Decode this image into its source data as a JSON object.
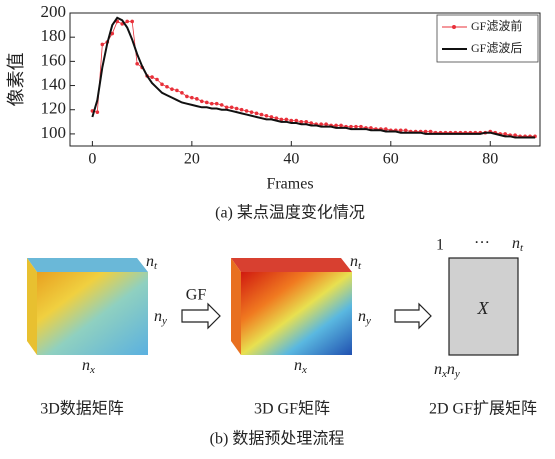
{
  "chart_data": {
    "type": "line",
    "x_label": "Frames",
    "y_label": "像素值",
    "caption": "(a) 某点温度变化情况",
    "x": [
      0,
      1,
      2,
      3,
      4,
      5,
      6,
      7,
      8,
      9,
      10,
      11,
      12,
      13,
      14,
      15,
      16,
      17,
      18,
      19,
      20,
      21,
      22,
      23,
      24,
      25,
      26,
      27,
      28,
      29,
      30,
      31,
      32,
      33,
      34,
      35,
      36,
      37,
      38,
      39,
      40,
      41,
      42,
      43,
      44,
      45,
      46,
      47,
      48,
      49,
      50,
      51,
      52,
      53,
      54,
      55,
      56,
      57,
      58,
      59,
      60,
      61,
      62,
      63,
      64,
      65,
      66,
      67,
      68,
      69,
      70,
      71,
      72,
      73,
      74,
      75,
      76,
      77,
      78,
      79,
      80,
      81,
      82,
      83,
      84,
      85,
      86,
      87,
      88,
      89
    ],
    "series": [
      {
        "name": "GF滤波前",
        "color": "#e8303a",
        "marker": true,
        "values": [
          119,
          118,
          174,
          176,
          183,
          193,
          191,
          193,
          193,
          158,
          155,
          148,
          147,
          145,
          141,
          139,
          137,
          136,
          134,
          131,
          130,
          129,
          127,
          126,
          125,
          125,
          124,
          122,
          122,
          121,
          120,
          119,
          118,
          117,
          116,
          115,
          114,
          113,
          112,
          112,
          111,
          111,
          110,
          110,
          109,
          108,
          108,
          108,
          107,
          107,
          107,
          106,
          106,
          106,
          106,
          105,
          105,
          104,
          104,
          104,
          103,
          103,
          103,
          103,
          102,
          102,
          102,
          102,
          102,
          101,
          101,
          101,
          101,
          101,
          101,
          101,
          101,
          101,
          101,
          101,
          102,
          101,
          100,
          100,
          99,
          99,
          98,
          98,
          98,
          98
        ]
      },
      {
        "name": "GF滤波后",
        "color": "#111111",
        "marker": false,
        "values": [
          114,
          128,
          155,
          175,
          190,
          196,
          194,
          188,
          178,
          166,
          156,
          148,
          142,
          138,
          134,
          132,
          130,
          128,
          126,
          125,
          124,
          123,
          122,
          122,
          121,
          121,
          120,
          120,
          119,
          118,
          117,
          116,
          115,
          114,
          113,
          112,
          112,
          111,
          110,
          110,
          109,
          109,
          108,
          108,
          107,
          107,
          106,
          106,
          106,
          105,
          105,
          105,
          104,
          104,
          104,
          104,
          103,
          103,
          103,
          102,
          102,
          102,
          101,
          101,
          101,
          101,
          101,
          100,
          100,
          100,
          100,
          100,
          100,
          100,
          100,
          100,
          100,
          100,
          100,
          101,
          101,
          100,
          99,
          98,
          98,
          97,
          97,
          97,
          97,
          97
        ]
      }
    ],
    "xlim": [
      -4.5,
      90
    ],
    "xticks": [
      0,
      20,
      40,
      60,
      80
    ],
    "ylim": [
      90,
      200
    ],
    "yticks": [
      100,
      120,
      140,
      160,
      180,
      200
    ],
    "grid": false,
    "legend": "upper right"
  },
  "diagram": {
    "cube1": {
      "nt": {
        "base": "n",
        "sub": "t"
      },
      "ny": {
        "base": "n",
        "sub": "y"
      },
      "nx": {
        "base": "n",
        "sub": "x"
      },
      "label": "3D数据矩阵"
    },
    "arrow1": "GF",
    "cube2": {
      "nt": {
        "base": "n",
        "sub": "t"
      },
      "ny": {
        "base": "n",
        "sub": "y"
      },
      "nx": {
        "base": "n",
        "sub": "x"
      },
      "label": "3D GF矩阵"
    },
    "matrix": {
      "one": "1",
      "dots": "···",
      "nt": {
        "base": "n",
        "sub": "t"
      },
      "symbol": "X",
      "nxny": {
        "base1": "n",
        "sub1": "x",
        "base2": "n",
        "sub2": "y"
      },
      "label": "2D GF扩展矩阵"
    },
    "caption": "(b) 数据预处理流程"
  }
}
